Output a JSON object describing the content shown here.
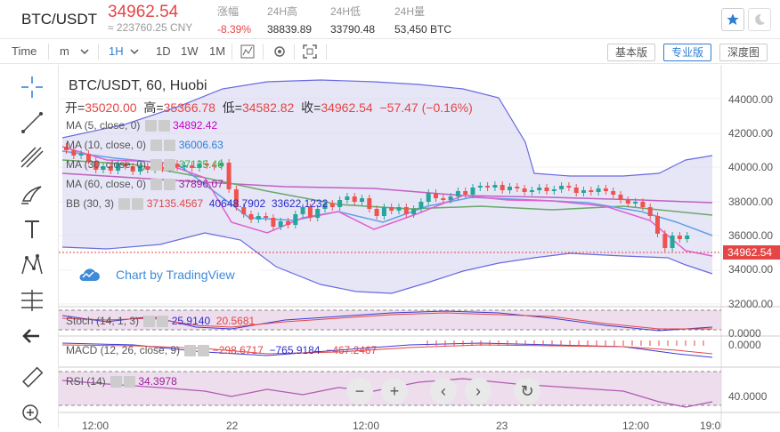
{
  "header": {
    "pair": "BTC/USDT",
    "price": "34962.54",
    "cny": "≈ 223760.25 CNY",
    "stats": [
      {
        "label": "涨幅",
        "value": "-8.39%",
        "red": true
      },
      {
        "label": "24H高",
        "value": "38839.89",
        "red": false
      },
      {
        "label": "24H低",
        "value": "33790.48",
        "red": false
      },
      {
        "label": "24H量",
        "value": "53,450 BTC",
        "red": false
      }
    ]
  },
  "toolbar": {
    "time": "Time",
    "m": "m",
    "intervals": [
      "1H",
      "1D",
      "1W",
      "1M"
    ],
    "modes": [
      "基本版",
      "专业版",
      "深度图"
    ]
  },
  "chart": {
    "title": "BTC/USDT, 60, Huobi",
    "ohlc": {
      "o_label": "开=",
      "o": "35020.00",
      "h_label": "高=",
      "h": "35366.78",
      "l_label": "低=",
      "l": "34582.82",
      "c_label": "收=",
      "c": "34962.54",
      "chg": "−57.47 (−0.16%)"
    },
    "indicators": [
      {
        "name": "MA (5, close, 0)",
        "value": "34892.42",
        "color": "#c800c8"
      },
      {
        "name": "MA (10, close, 0)",
        "value": "36006.63",
        "color": "#2d7fd6"
      },
      {
        "name": "MA (30, close, 0)",
        "value": "37135.46",
        "color": "#3bb33b"
      },
      {
        "name": "MA (60, close, 0)",
        "value": "37896.07",
        "color": "#9b1f9b"
      }
    ],
    "bb": {
      "name": "BB (30, 3)",
      "v1": "37135.4567",
      "v2": "40648.7902",
      "v3": "33622.1232"
    },
    "watermark": "Chart by TradingView",
    "current_price": "34962.54",
    "y_ticks": [
      "44000.00",
      "42000.00",
      "40000.00",
      "38000.00",
      "36000.00",
      "34000.00",
      "32000.00"
    ],
    "x_ticks": [
      "12:00",
      "22",
      "12:00",
      "23",
      "12:00",
      "19:0"
    ],
    "stoch": {
      "name": "Stoch (14, 1, 3)",
      "v1": "25.9140",
      "v2": "20.5681",
      "tick": "0.0000"
    },
    "macd": {
      "name": "MACD (12, 26, close, 9)",
      "v1": "−298.6717",
      "v2": "−765.9184",
      "v3": "−467.2467",
      "tick": "0.0000"
    },
    "rsi": {
      "name": "RSI (14)",
      "v1": "34.3978",
      "tick": "40.0000"
    },
    "colors": {
      "up": "#26a69a",
      "down": "#ef5350",
      "band": "#6a6ae0"
    }
  }
}
